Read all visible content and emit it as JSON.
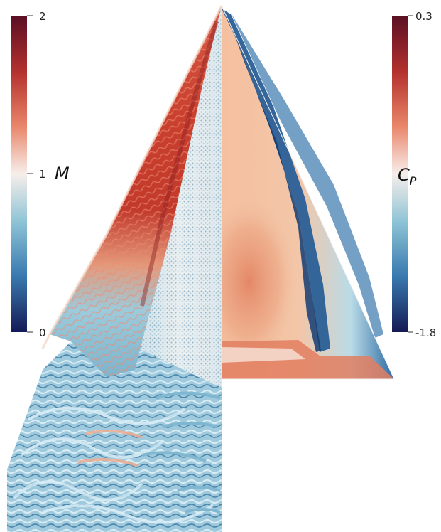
{
  "left_colorbar": {
    "symbol": "M",
    "ticks": [
      "2",
      "1",
      "0"
    ],
    "colors": [
      "#5a0f24",
      "#b5322e",
      "#e9866a",
      "#f7eeea",
      "#8fc4d6",
      "#3a7bb0",
      "#141a55"
    ]
  },
  "right_colorbar": {
    "symbol": "C",
    "subscript": "P",
    "ticks": [
      "0.3",
      "-1.8"
    ],
    "colors": [
      "#5a0f24",
      "#b5322e",
      "#e9866a",
      "#f7eeea",
      "#8fc4d6",
      "#3a7bb0",
      "#141a55"
    ]
  },
  "panels": {
    "left_field": "Mach-number iso-surfaces",
    "right_field": "surface pressure coefficient"
  }
}
